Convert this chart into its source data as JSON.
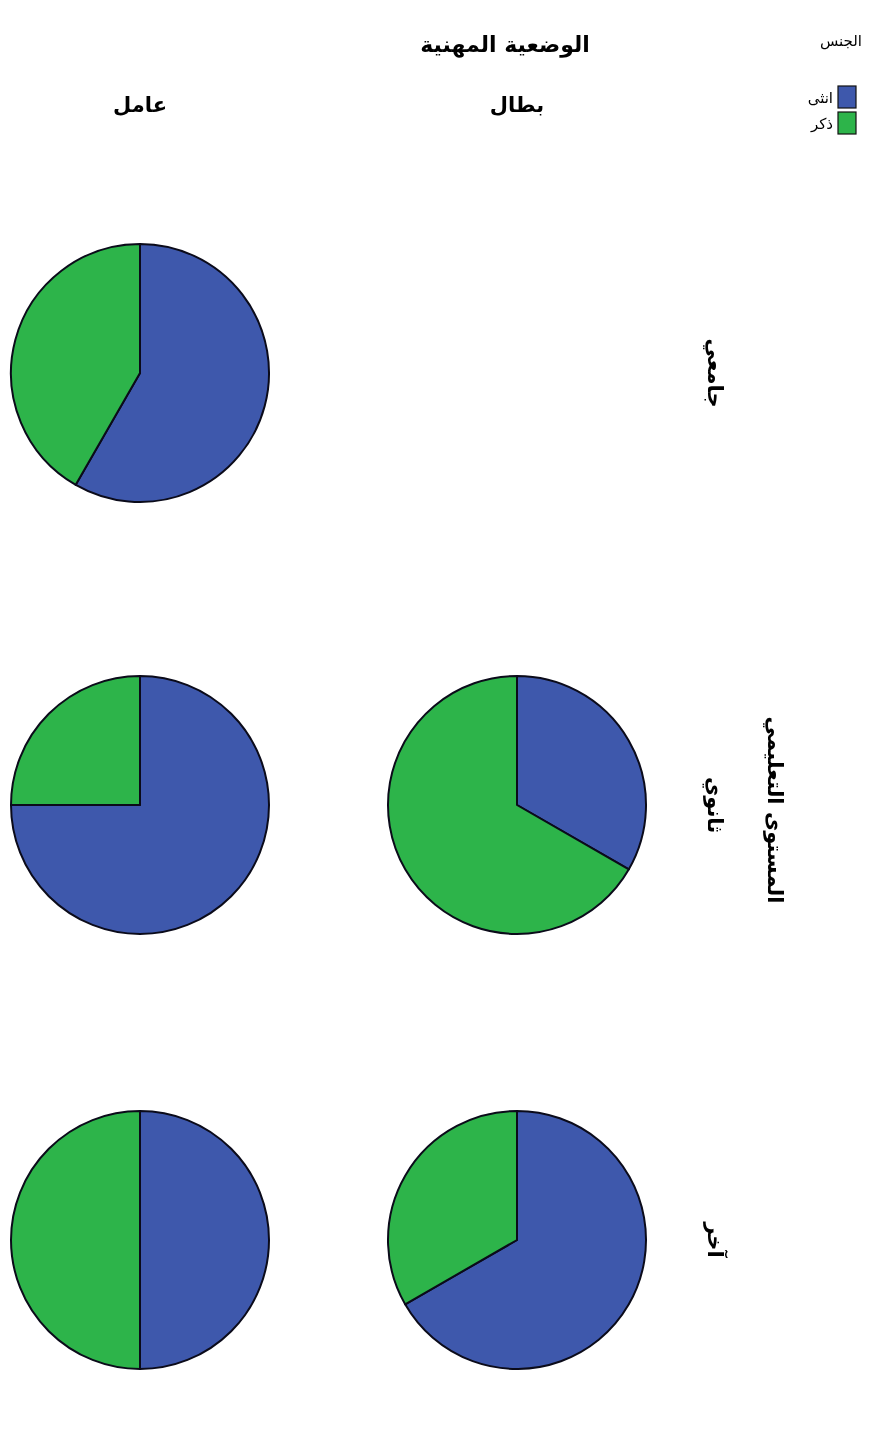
{
  "chart_data": [
    {
      "type": "other",
      "title": "الوضعية المهنية",
      "ylabel": "المستوى التعليمي",
      "categories": [
        "عامل",
        "بطال"
      ],
      "y_categories": [
        "جامعي",
        "ثانوي",
        "آخر"
      ]
    },
    {
      "type": "pie",
      "categories": [
        "انثى",
        "ذكر"
      ],
      "values": [
        58.3,
        41.7
      ],
      "colors": [
        "#3e58ac",
        "#2db44a"
      ],
      "legend": "top right",
      "legend_title": "الجنس"
    },
    {
      "type": "pie",
      "values": [
        75,
        25
      ],
      "colors": [
        "#3e58ac",
        "#2db44a"
      ]
    },
    {
      "type": "pie",
      "values": [
        33.3,
        66.7
      ],
      "colors": [
        "#3e58ac",
        "#2db44a"
      ]
    },
    {
      "type": "pie",
      "values": [
        50,
        50
      ],
      "colors": [
        "#3e58ac",
        "#2db44a"
      ]
    },
    {
      "type": "pie",
      "values": [
        66.7,
        33.3
      ],
      "colors": [
        "#3e58ac",
        "#2db44a"
      ]
    }
  ]
}
